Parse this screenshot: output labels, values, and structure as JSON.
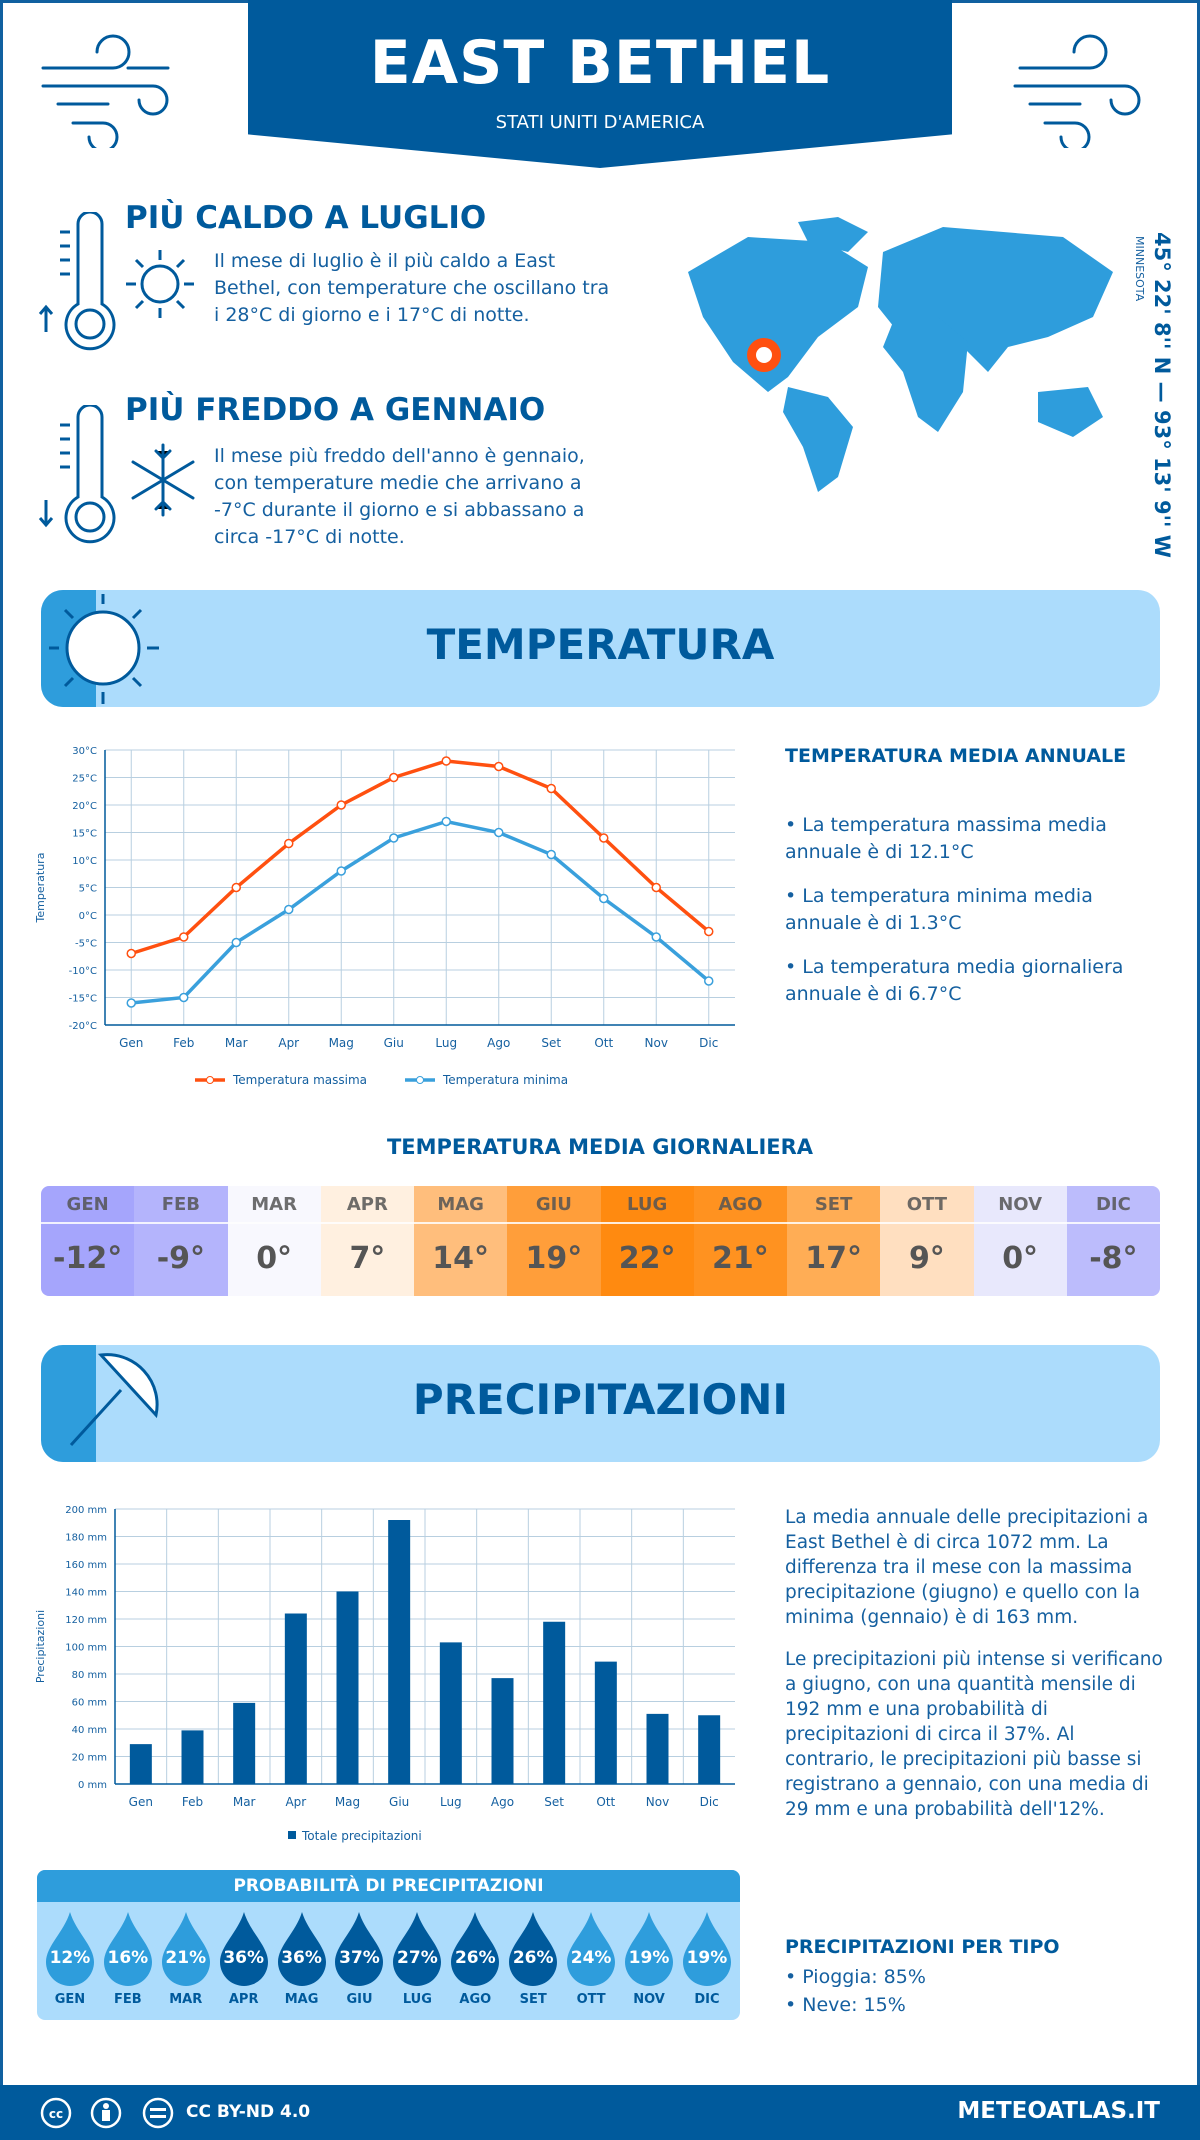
{
  "header": {
    "title": "EAST BETHEL",
    "subtitle": "STATI UNITI D'AMERICA"
  },
  "coords": {
    "text": "45° 22' 8'' N — 93° 13' 9'' W",
    "region": "MINNESOTA"
  },
  "warmest": {
    "title": "PIÙ CALDO A LUGLIO",
    "text": "Il mese di luglio è il più caldo a East Bethel, con temperature che oscillano tra i 28°C di giorno e i 17°C di notte."
  },
  "coldest": {
    "title": "PIÙ FREDDO A GENNAIO",
    "text": "Il mese più freddo dell'anno è gennaio, con temperature medie che arrivano a -7°C durante il giorno e si abbassano a circa -17°C di notte."
  },
  "temp_section": {
    "title": "TEMPERATURA",
    "side_title": "TEMPERATURA MEDIA ANNUALE",
    "bullets": [
      "• La temperatura massima media annuale è di 12.1°C",
      "• La temperatura minima media annuale è di 1.3°C",
      "• La temperatura media giornaliera annuale è di 6.7°C"
    ]
  },
  "daily": {
    "title": "TEMPERATURA MEDIA GIORNALIERA",
    "months": [
      "GEN",
      "FEB",
      "MAR",
      "APR",
      "MAG",
      "GIU",
      "LUG",
      "AGO",
      "SET",
      "OTT",
      "NOV",
      "DIC"
    ],
    "values": [
      "-12°",
      "-9°",
      "0°",
      "7°",
      "14°",
      "19°",
      "22°",
      "21°",
      "17°",
      "9°",
      "0°",
      "-8°"
    ],
    "colors": [
      "#a5a5fc",
      "#b4b4fc",
      "#f8f8fe",
      "#fff0e0",
      "#ffbe7c",
      "#ff9e3a",
      "#ff8a10",
      "#ff9220",
      "#ffad55",
      "#ffdfc0",
      "#e8e8fc",
      "#bcbcfc"
    ]
  },
  "precip_section": {
    "title": "PRECIPITAZIONI",
    "p1": "La media annuale delle precipitazioni a East Bethel è di circa 1072 mm. La differenza tra il mese con la massima precipitazione (giugno) e quello con la minima (gennaio) è di 163 mm.",
    "p2": "Le precipitazioni più intense si verificano a giugno, con una quantità mensile di 192 mm e una probabilità di precipitazioni di circa il 37%. Al contrario, le precipitazioni più basse si registrano a gennaio, con una media di 29 mm e una probabilità dell'12%."
  },
  "probability": {
    "title": "PROBABILITÀ DI PRECIPITAZIONI",
    "months": [
      "GEN",
      "FEB",
      "MAR",
      "APR",
      "MAG",
      "GIU",
      "LUG",
      "AGO",
      "SET",
      "OTT",
      "NOV",
      "DIC"
    ],
    "values": [
      "12%",
      "16%",
      "21%",
      "36%",
      "36%",
      "37%",
      "27%",
      "26%",
      "26%",
      "24%",
      "19%",
      "19%"
    ],
    "colors": [
      "#2e9ddc",
      "#2e9ddc",
      "#2e9ddc",
      "#005a9c",
      "#005a9c",
      "#005a9c",
      "#005a9c",
      "#005a9c",
      "#005a9c",
      "#2e9ddc",
      "#2e9ddc",
      "#2e9ddc"
    ]
  },
  "by_type": {
    "title": "PRECIPITAZIONI PER TIPO",
    "items": [
      "• Pioggia: 85%",
      "• Neve: 15%"
    ]
  },
  "footer": {
    "license": "CC BY-ND 4.0",
    "site": "METEOATLAS.IT"
  },
  "chart_data": [
    {
      "type": "line",
      "categories": [
        "Gen",
        "Feb",
        "Mar",
        "Apr",
        "Mag",
        "Giu",
        "Lug",
        "Ago",
        "Set",
        "Ott",
        "Nov",
        "Dic"
      ],
      "ylabel": "Temperatura",
      "ylim": [
        -20,
        30
      ],
      "yticks": [
        "-20°C",
        "-15°C",
        "-10°C",
        "-5°C",
        "0°C",
        "5°C",
        "10°C",
        "15°C",
        "20°C",
        "25°C",
        "30°C"
      ],
      "grid": true,
      "legend": "bottom",
      "series": [
        {
          "name": "Temperatura massima",
          "color": "#ff5010",
          "values": [
            -7,
            -4,
            5,
            13,
            20,
            25,
            28,
            27,
            23,
            14,
            5,
            -3
          ]
        },
        {
          "name": "Temperatura minima",
          "color": "#3aa0dc",
          "values": [
            -16,
            -15,
            -5,
            1,
            8,
            14,
            17,
            15,
            11,
            3,
            -4,
            -12
          ]
        }
      ]
    },
    {
      "type": "bar",
      "categories": [
        "Gen",
        "Feb",
        "Mar",
        "Apr",
        "Mag",
        "Giu",
        "Lug",
        "Ago",
        "Set",
        "Ott",
        "Nov",
        "Dic"
      ],
      "ylabel": "Precipitazioni",
      "ylim": [
        0,
        200
      ],
      "yticks": [
        "0 mm",
        "20 mm",
        "40 mm",
        "60 mm",
        "80 mm",
        "100 mm",
        "120 mm",
        "140 mm",
        "160 mm",
        "180 mm",
        "200 mm"
      ],
      "grid": true,
      "legend": "bottom",
      "series": [
        {
          "name": "Totale precipitazioni",
          "color": "#005a9c",
          "values": [
            29,
            39,
            59,
            124,
            140,
            192,
            103,
            77,
            118,
            89,
            51,
            50
          ]
        }
      ]
    }
  ]
}
